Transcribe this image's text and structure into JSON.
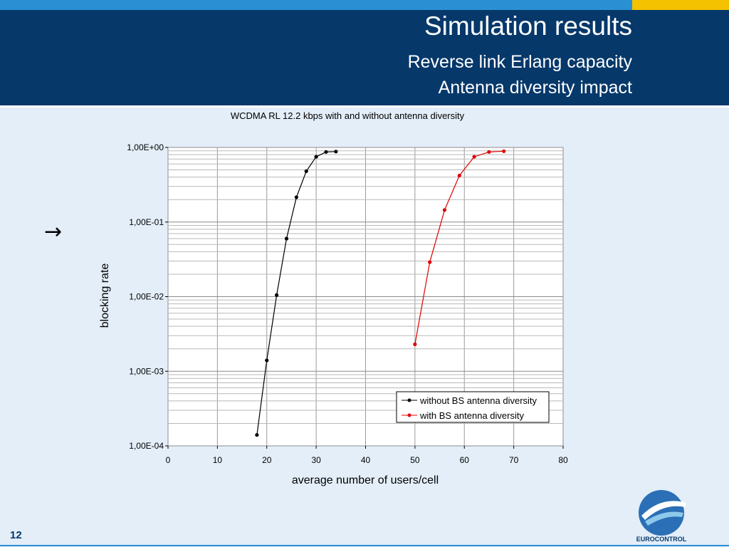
{
  "slide": {
    "title": "Simulation results",
    "subtitle_line1": "Reverse link Erlang capacity",
    "subtitle_line2": "Antenna diversity impact",
    "arrow_symbol": "→",
    "slide_number": "12",
    "logo_text": "EUROCONTROL"
  },
  "colors": {
    "header_bg": "#06386a",
    "stripe": "#2b8fd4",
    "accent": "#f5c200",
    "series_black": "#000000",
    "series_red": "#e00000"
  },
  "chart_data": {
    "type": "line",
    "title": "WCDMA RL 12.2 kbps with and without antenna diversity",
    "xlabel": "average number of users/cell",
    "ylabel": "blocking rate",
    "xlim": [
      0,
      80
    ],
    "ylim": [
      0.0001,
      1
    ],
    "y_scale": "log",
    "grid": true,
    "legend_position": "bottom-right",
    "x_ticks": [
      0,
      10,
      20,
      30,
      40,
      50,
      60,
      70,
      80
    ],
    "y_ticks": [
      {
        "value": 0.0001,
        "label": "1,00E-04"
      },
      {
        "value": 0.001,
        "label": "1,00E-03"
      },
      {
        "value": 0.01,
        "label": "1,00E-02"
      },
      {
        "value": 0.1,
        "label": "1,00E-01"
      },
      {
        "value": 1,
        "label": "1,00E+00"
      }
    ],
    "series": [
      {
        "name": "without BS antenna diversity",
        "color": "#000000",
        "x": [
          18,
          20,
          22,
          24,
          26,
          28,
          30,
          32,
          34
        ],
        "y": [
          0.00014,
          0.0014,
          0.0105,
          0.06,
          0.215,
          0.48,
          0.75,
          0.87,
          0.88
        ]
      },
      {
        "name": "with BS antenna diversity",
        "color": "#e00000",
        "x": [
          50,
          53,
          56,
          59,
          62,
          65,
          68
        ],
        "y": [
          0.0023,
          0.029,
          0.145,
          0.42,
          0.75,
          0.87,
          0.89
        ]
      }
    ]
  }
}
